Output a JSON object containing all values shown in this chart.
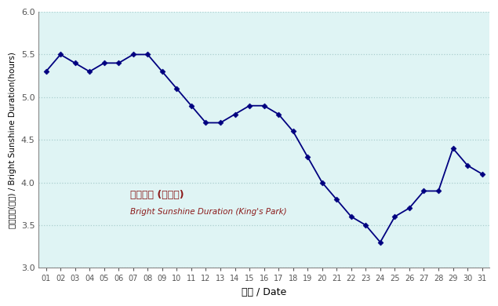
{
  "days": [
    1,
    2,
    3,
    4,
    5,
    6,
    7,
    8,
    9,
    10,
    11,
    12,
    13,
    14,
    15,
    16,
    17,
    18,
    19,
    20,
    21,
    22,
    23,
    24,
    25,
    26,
    27,
    28,
    29,
    30,
    31
  ],
  "values": [
    5.3,
    5.5,
    5.4,
    5.3,
    5.4,
    5.4,
    5.5,
    5.5,
    5.3,
    5.1,
    4.9,
    4.7,
    4.7,
    4.8,
    4.9,
    4.9,
    4.8,
    4.6,
    4.3,
    4.0,
    3.8,
    3.6,
    3.5,
    3.3,
    3.6,
    3.7,
    3.9,
    3.9,
    4.4,
    4.2,
    4.1
  ],
  "ylim": [
    3.0,
    6.0
  ],
  "yticks": [
    3.0,
    3.5,
    4.0,
    4.5,
    5.0,
    5.5,
    6.0
  ],
  "xlabel": "日期 / Date",
  "ylabel": "平均日照(小時) / Bright Sunshine Duration(hours)",
  "label_cn": "平均日照 (京士柏)",
  "label_en": "Bright Sunshine Duration (King's Park)",
  "line_color": "#000080",
  "marker": "D",
  "marker_size": 3.5,
  "bg_color": "#dff4f4",
  "grid_color": "#aacece",
  "label_cn_color": "#8B1A1A",
  "label_en_color": "#8B1A1A",
  "tick_color": "#555555",
  "spine_color": "#888888",
  "fig_width": 6.35,
  "fig_height": 3.9
}
